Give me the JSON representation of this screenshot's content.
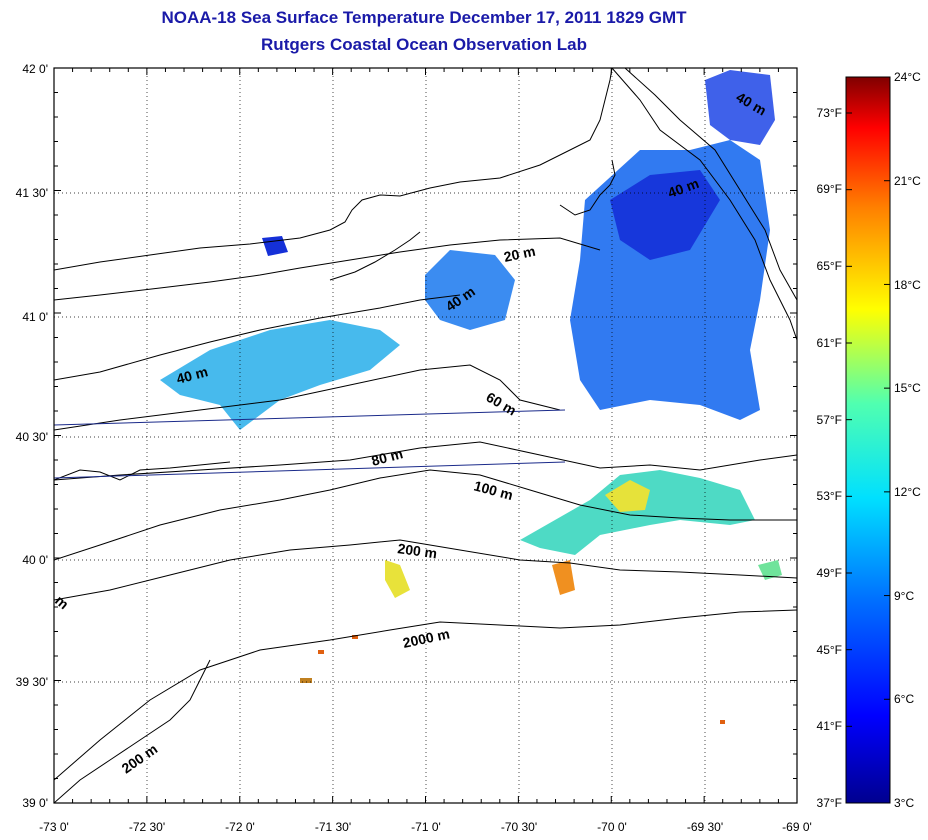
{
  "title": "NOAA-18 Sea Surface Temperature December 17, 2011 1829 GMT",
  "subtitle": "Rutgers Coastal Ocean Observation Lab",
  "axes": {
    "lat_ticks": [
      "42 0'",
      "41 30'",
      "41 0'",
      "40 30'",
      "40 0'",
      "39 30'",
      "39 0'"
    ],
    "lon_ticks": [
      "-73 0'",
      "-72 30'",
      "-72 0'",
      "-71 30'",
      "-71 0'",
      "-70 30'",
      "-70 0'",
      "-69 30'",
      "-69 0'"
    ],
    "lat_range": [
      39.0,
      42.0
    ],
    "lon_range": [
      -73.0,
      -69.0
    ],
    "grid": "dotted"
  },
  "colorbar": {
    "celsius": [
      "24°C",
      "21°C",
      "18°C",
      "15°C",
      "12°C",
      "9°C",
      "6°C",
      "3°C"
    ],
    "fahrenheit": [
      "73°F",
      "69°F",
      "65°F",
      "61°F",
      "57°F",
      "53°F",
      "49°F",
      "45°F",
      "41°F",
      "37°F"
    ],
    "range_c": [
      3,
      24
    ]
  },
  "contour_labels": [
    {
      "text": "20 m",
      "angle": -12
    },
    {
      "text": "40 m",
      "angle": -35
    },
    {
      "text": "40 m",
      "angle": -20
    },
    {
      "text": "40 m",
      "angle": 30
    },
    {
      "text": "40 m",
      "angle": 0
    },
    {
      "text": "60 m",
      "angle": 30
    },
    {
      "text": "80 m",
      "angle": -15
    },
    {
      "text": "100 m",
      "angle": 15
    },
    {
      "text": "200 m",
      "angle": 8
    },
    {
      "text": "2000 m",
      "angle": -12
    },
    {
      "text": "200 m",
      "angle": -35
    },
    {
      "text": "m",
      "angle": 40
    }
  ],
  "colors": {
    "title": "#1a1aa8",
    "coast": "#000000",
    "track": "#1a2a8a"
  }
}
